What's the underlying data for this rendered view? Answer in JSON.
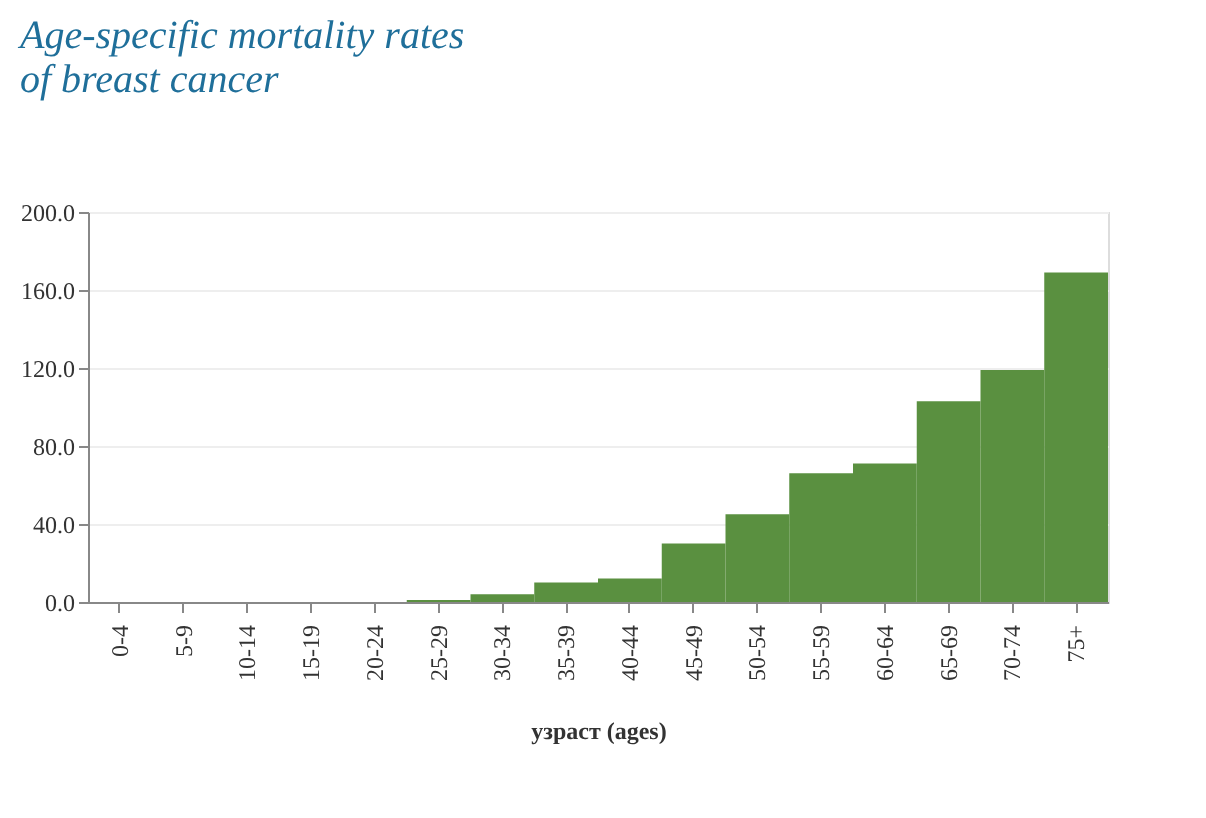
{
  "chart_data": {
    "type": "bar",
    "title": "Age-specific mortality rates of breast cancer",
    "xlabel": "узраст (ages)",
    "categories": [
      "0-4",
      "5-9",
      "10-14",
      "15-19",
      "20-24",
      "25-29",
      "30-34",
      "35-39",
      "40-44",
      "45-49",
      "50-54",
      "55-59",
      "60-64",
      "65-69",
      "70-74",
      "75+"
    ],
    "values": [
      0,
      0,
      0,
      0,
      0,
      1,
      4,
      10,
      12,
      30,
      45,
      66,
      71,
      103,
      119,
      169
    ],
    "color": "#5a9040",
    "ylim": [
      0,
      200
    ],
    "yticks": [
      {
        "value": 0,
        "label": "0.0"
      },
      {
        "value": 40,
        "label": "40.0"
      },
      {
        "value": 80,
        "label": "80.0"
      },
      {
        "value": 120,
        "label": "120.0"
      },
      {
        "value": 160,
        "label": "160.0"
      },
      {
        "value": 200,
        "label": "200.0"
      }
    ],
    "grid": "y"
  }
}
